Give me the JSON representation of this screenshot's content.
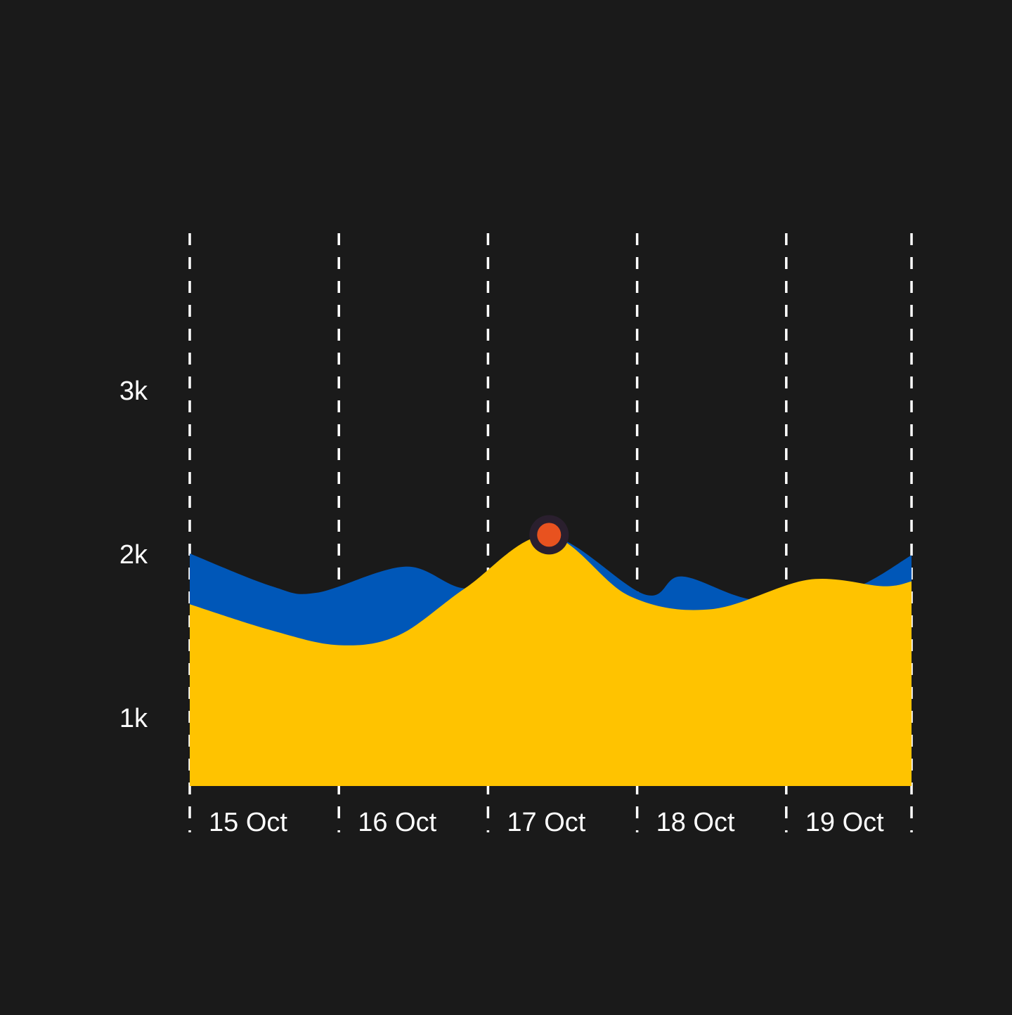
{
  "colors": {
    "background": "#1a1a1a",
    "gridline": "#ffffff",
    "text": "#ffffff",
    "marker_fill": "#e8521f",
    "marker_ring": "#2a1f2e"
  },
  "chart_data": {
    "type": "area",
    "title": "",
    "xlabel": "",
    "ylabel": "",
    "categories": [
      "15 Oct",
      "16 Oct",
      "17 Oct",
      "18 Oct",
      "19 Oct"
    ],
    "x_range": [
      0,
      4.84
    ],
    "y_ticks": [
      {
        "value": 1000,
        "label": "1k"
      },
      {
        "value": 2000,
        "label": "2k"
      },
      {
        "value": 3000,
        "label": "3k"
      }
    ],
    "ylim": [
      500,
      3000
    ],
    "grid": "vertical dashed",
    "legend": "none",
    "series": [
      {
        "color": "#0057b8",
        "points": [
          [
            0.0,
            2000
          ],
          [
            0.55,
            1800
          ],
          [
            0.85,
            1760
          ],
          [
            1.45,
            1920
          ],
          [
            1.9,
            1790
          ],
          [
            2.4,
            2110
          ],
          [
            3.05,
            1750
          ],
          [
            3.3,
            1860
          ],
          [
            3.8,
            1715
          ],
          [
            4.4,
            1770
          ],
          [
            4.84,
            1990
          ]
        ]
      },
      {
        "color": "#ffc300",
        "points": [
          [
            0.0,
            1690
          ],
          [
            0.55,
            1530
          ],
          [
            1.0,
            1440
          ],
          [
            1.4,
            1500
          ],
          [
            1.85,
            1790
          ],
          [
            2.4,
            2110
          ],
          [
            2.95,
            1740
          ],
          [
            3.5,
            1660
          ],
          [
            4.15,
            1840
          ],
          [
            4.65,
            1800
          ],
          [
            4.84,
            1830
          ]
        ]
      }
    ],
    "highlight_point": {
      "x": 2.4,
      "y": 2110
    }
  }
}
